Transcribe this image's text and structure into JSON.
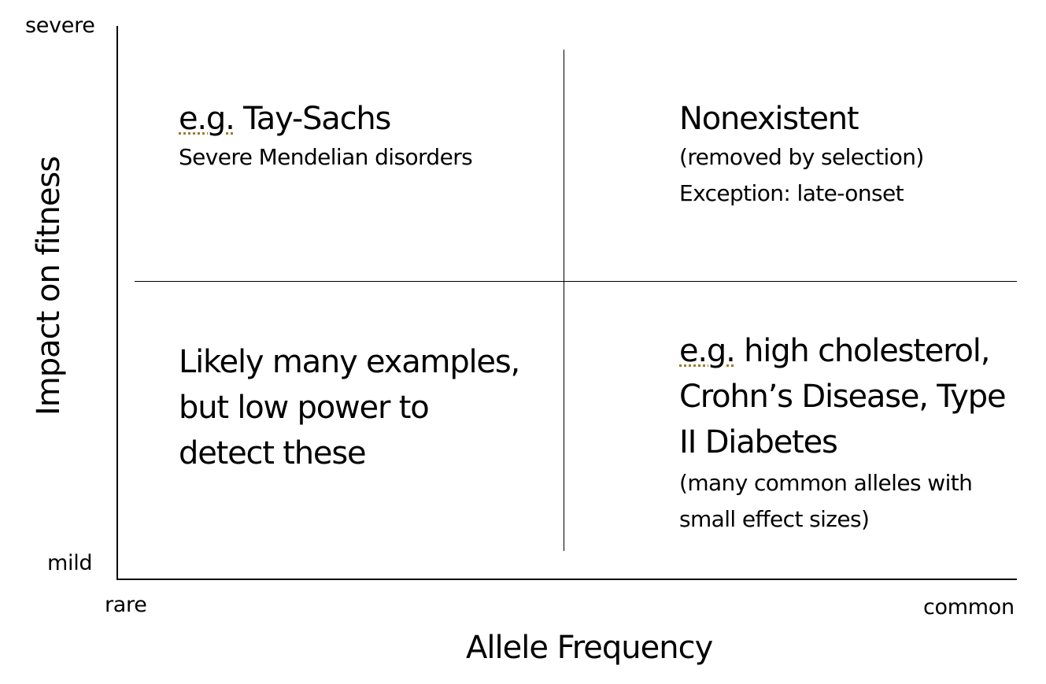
{
  "axes": {
    "y_top_label": "severe",
    "y_bottom_label": "mild",
    "x_left_label": "rare",
    "x_right_label": "common",
    "x_title": "Allele Frequency",
    "y_title": "Impact on fitness"
  },
  "quadrants": {
    "top_left": {
      "eg": "e.g.",
      "title_rest": " Tay-Sachs",
      "subtitle": "Severe Mendelian disorders"
    },
    "top_right": {
      "title": "Nonexistent",
      "line1": "(removed by selection)",
      "line2": "Exception: late-onset"
    },
    "bottom_left": {
      "line1": "Likely many examples,",
      "line2": "but low power to",
      "line3": "detect these"
    },
    "bottom_right": {
      "eg": "e.g.",
      "line1_rest": " high cholesterol,",
      "line2": "Crohn’s Disease, Type",
      "line3": "II Diabetes",
      "note1": "(many common alleles with",
      "note2": "small effect sizes)"
    }
  }
}
